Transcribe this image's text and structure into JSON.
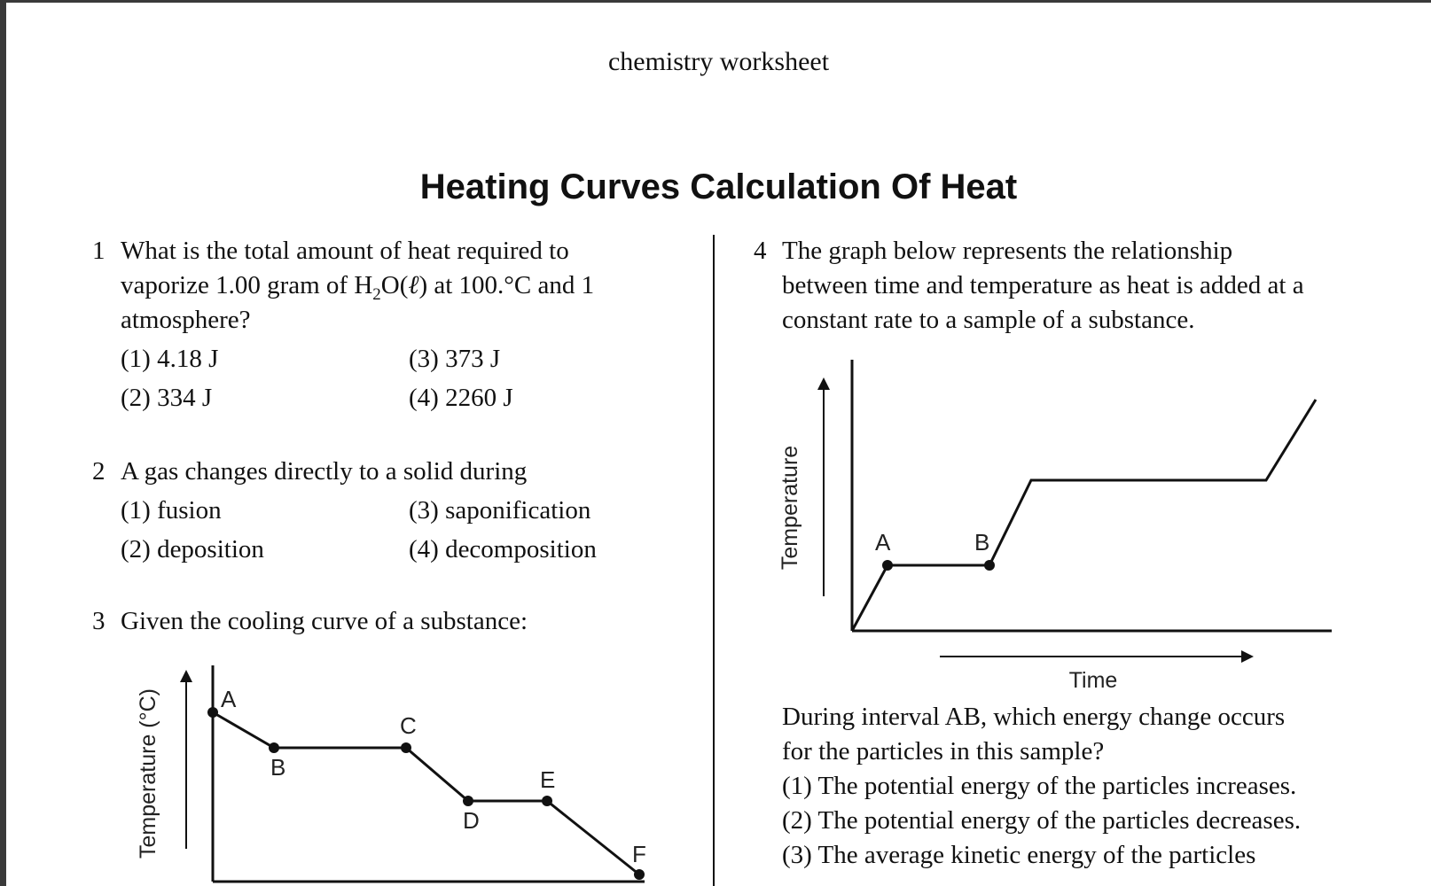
{
  "header": {
    "text": "chemistry worksheet"
  },
  "title": "Heating Curves Calculation Of Heat",
  "q1": {
    "number": "1",
    "line1": "What is the total amount of heat required to",
    "line2_pre": "vaporize 1.00 gram of H",
    "line2_sub": "2",
    "line2_mid": "O(",
    "line2_ital": "ℓ",
    "line2_post": ") at 100.°C and 1",
    "line3": "atmosphere?",
    "options": [
      "(1) 4.18 J",
      "(2) 334 J",
      "(3) 373 J",
      "(4) 2260 J"
    ]
  },
  "q2": {
    "number": "2",
    "line1": "A gas changes directly to a solid during",
    "options": [
      "(1) fusion",
      "(2) deposition",
      "(3) saponification",
      "(4) decomposition"
    ]
  },
  "q3": {
    "number": "3",
    "line1": "Given the cooling curve of a substance:",
    "graph": {
      "ylabel": "Temperature (°C)",
      "points": [
        "A",
        "B",
        "C",
        "D",
        "E",
        "F"
      ]
    }
  },
  "q4": {
    "number": "4",
    "lines": [
      "The graph below represents the relationship",
      "between time and temperature as heat is added at a",
      "constant rate to a sample of a substance."
    ],
    "graph": {
      "ylabel": "Temperature",
      "xlabel": "Time",
      "points": [
        "A",
        "B"
      ]
    },
    "question_lines": [
      "During interval AB, which energy change occurs",
      "for the particles in this sample?"
    ],
    "options": [
      "(1) The potential energy of the particles increases.",
      "(2) The potential energy of the particles decreases.",
      "(3) The average kinetic energy of the particles"
    ]
  }
}
